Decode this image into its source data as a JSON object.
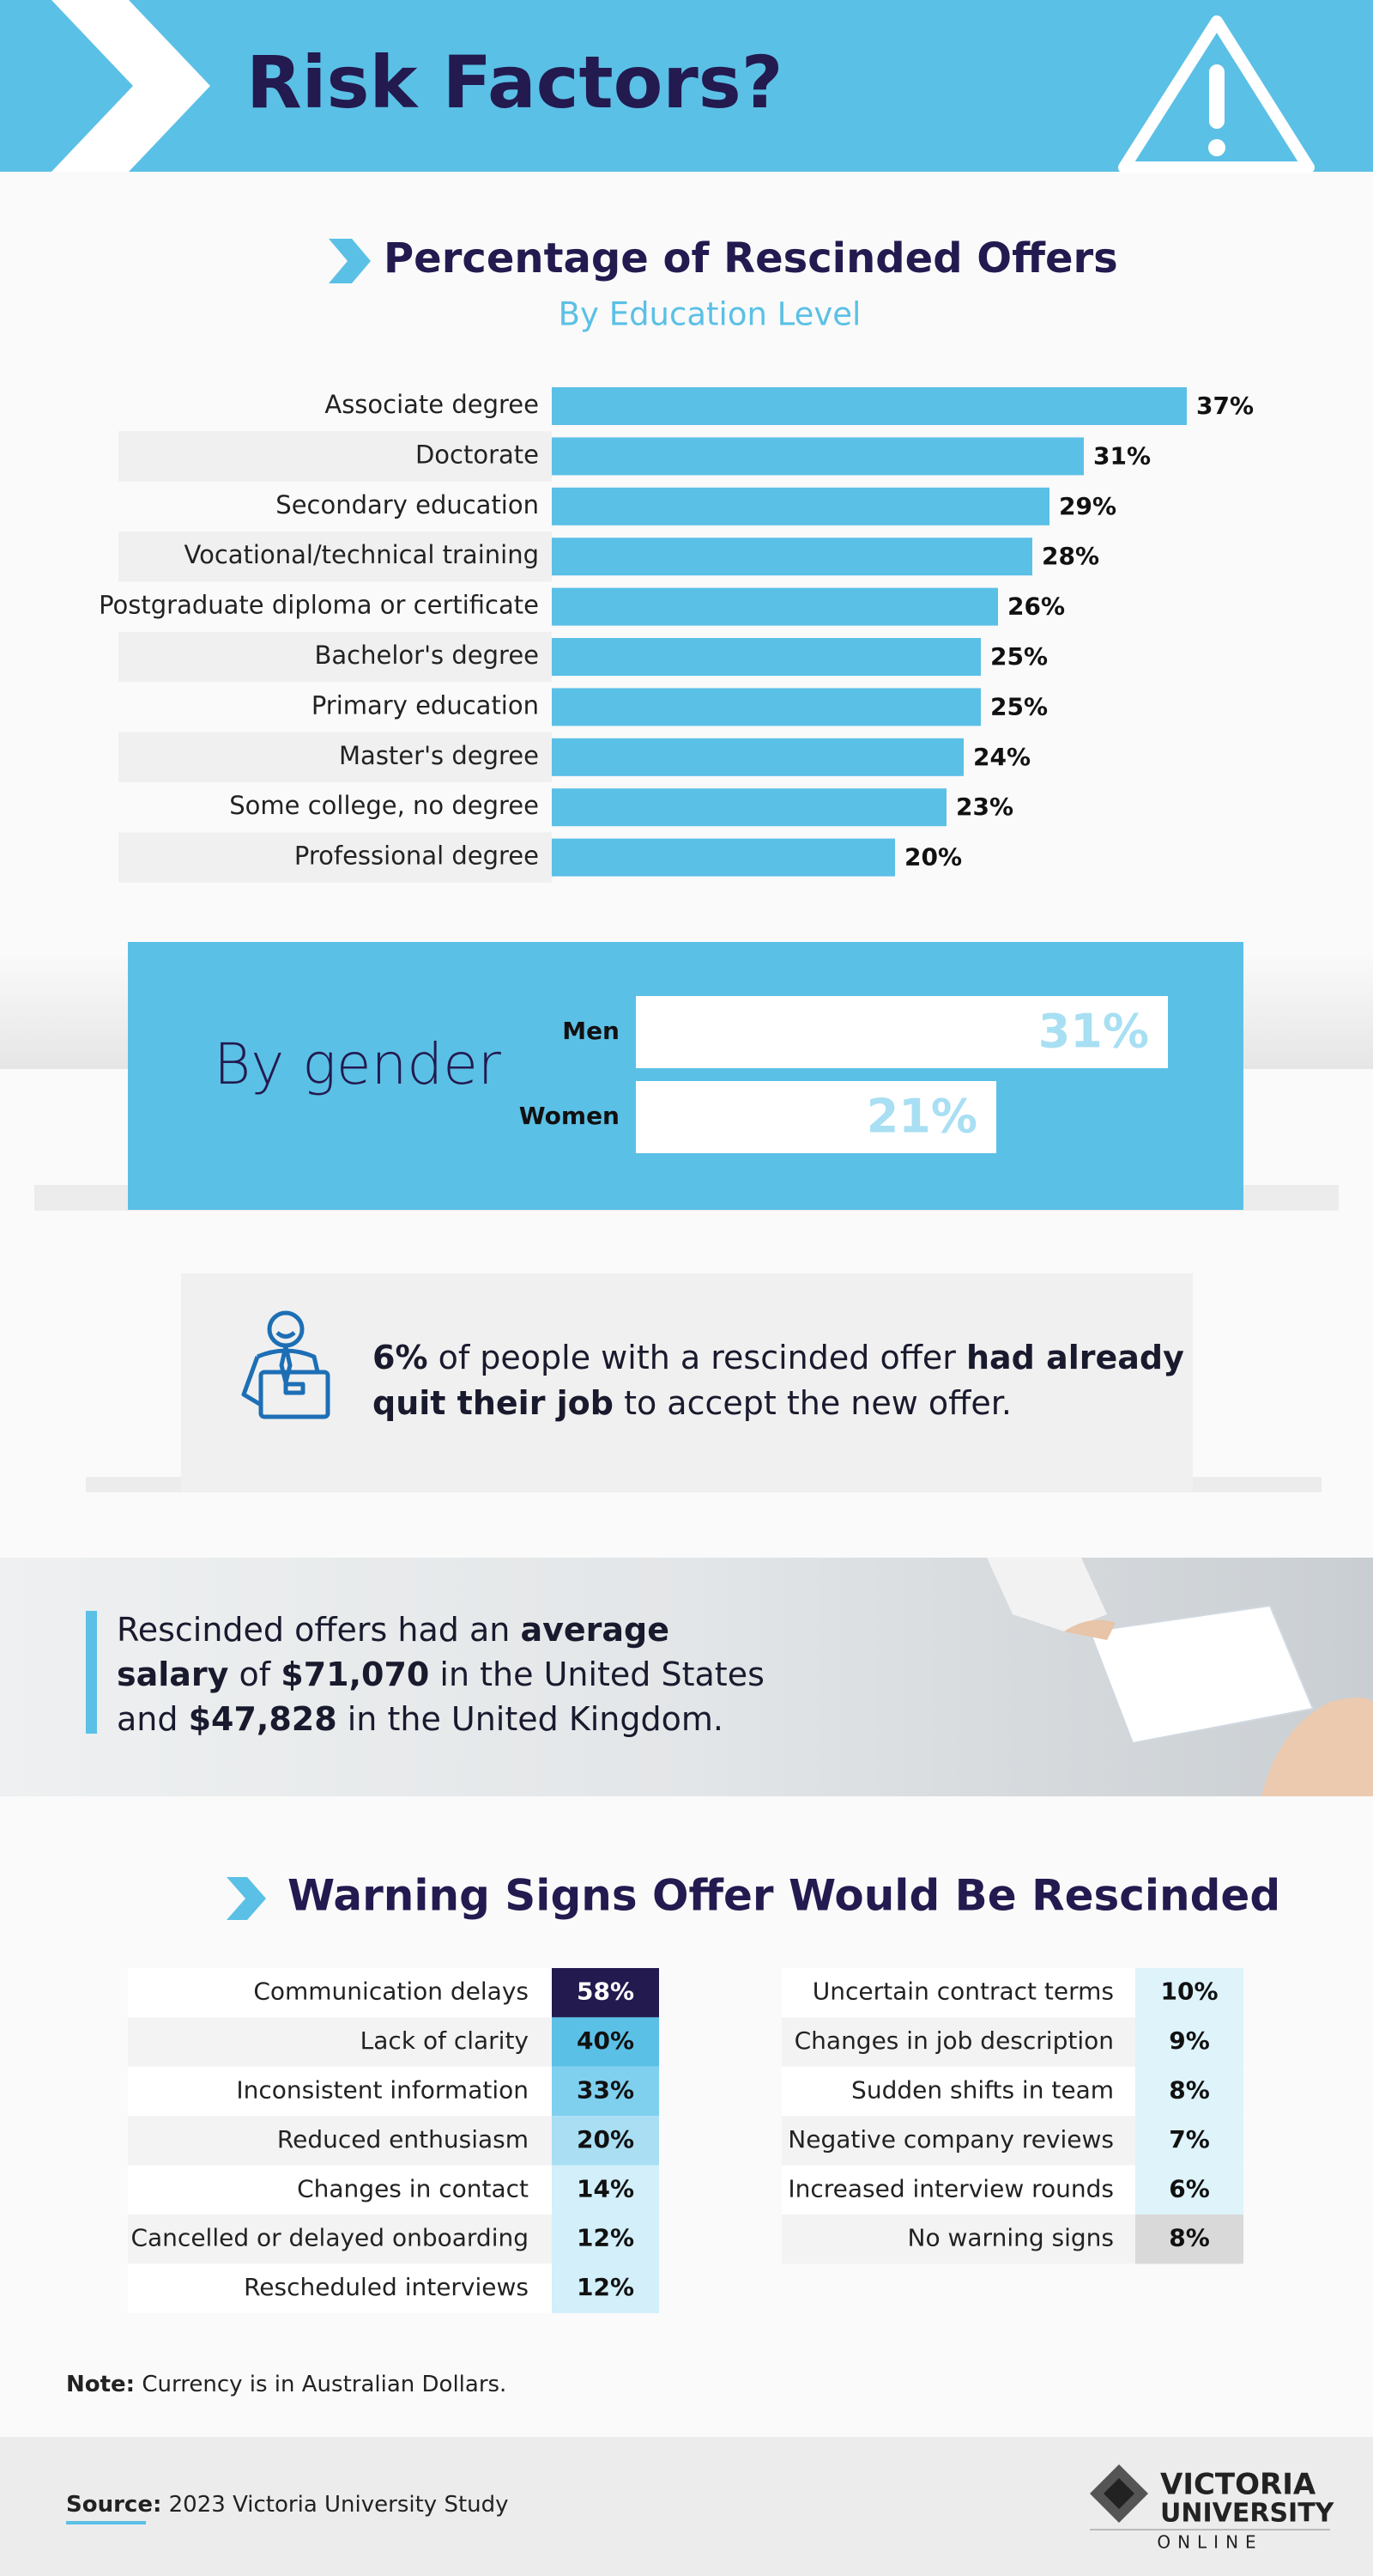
{
  "header": {
    "title": "Risk Factors?"
  },
  "chart_data": [
    {
      "type": "bar",
      "orientation": "horizontal",
      "title": "Percentage of Rescinded Offers",
      "subtitle": "By Education Level",
      "categories": [
        "Associate degree",
        "Doctorate",
        "Secondary education",
        "Vocational/technical training",
        "Postgraduate diploma or certificate",
        "Bachelor's degree",
        "Primary education",
        "Master's degree",
        "Some college, no degree",
        "Professional degree"
      ],
      "values": [
        37,
        31,
        29,
        28,
        26,
        25,
        25,
        24,
        23,
        20
      ],
      "value_labels": [
        "37%",
        "31%",
        "29%",
        "28%",
        "26%",
        "25%",
        "25%",
        "24%",
        "23%",
        "20%"
      ],
      "color": "#5bc0e6"
    },
    {
      "type": "bar",
      "orientation": "horizontal",
      "title": "By gender",
      "categories": [
        "Men",
        "Women"
      ],
      "values": [
        31,
        21
      ],
      "value_labels": [
        "31%",
        "21%"
      ],
      "color": "#ffffff",
      "label_color": "#a8dff3"
    }
  ],
  "callout": {
    "lines": [
      [
        {
          "text": "6%",
          "bold": true
        },
        {
          "text": " of people with a rescinded offer ",
          "bold": false
        },
        {
          "text": "had already",
          "bold": true
        }
      ],
      [
        {
          "text": "quit their job",
          "bold": true
        },
        {
          "text": " to accept the new offer.",
          "bold": false
        }
      ]
    ]
  },
  "salary": {
    "lines": [
      [
        {
          "text": "Rescinded offers had an ",
          "bold": false
        },
        {
          "text": "average",
          "bold": true
        }
      ],
      [
        {
          "text": "salary",
          "bold": true
        },
        {
          "text": " of ",
          "bold": false
        },
        {
          "text": "$71,070",
          "bold": true
        },
        {
          "text": " in the United States",
          "bold": false
        }
      ],
      [
        {
          "text": "and ",
          "bold": false
        },
        {
          "text": "$47,828",
          "bold": true
        },
        {
          "text": " in the United Kingdom.",
          "bold": false
        }
      ]
    ]
  },
  "warning_signs": {
    "title": "Warning Signs Offer Would Be Rescinded",
    "tables": [
      {
        "rows": [
          [
            "Communication delays",
            "58%"
          ],
          [
            "Lack of clarity",
            "40%"
          ],
          [
            "Inconsistent information",
            "33%"
          ],
          [
            "Reduced enthusiasm",
            "20%"
          ],
          [
            "Changes in contact",
            "14%"
          ],
          [
            "Cancelled or delayed onboarding",
            "12%"
          ],
          [
            "Rescheduled interviews",
            "12%"
          ]
        ],
        "shades": [
          "#231a4f",
          "#5bc0e6",
          "#7fcfee",
          "#a9def3",
          "#d2effa",
          "#d2effa",
          "#d2effa"
        ]
      },
      {
        "rows": [
          [
            "Uncertain contract terms",
            "10%"
          ],
          [
            "Changes in job description",
            "9%"
          ],
          [
            "Sudden shifts in team",
            "8%"
          ],
          [
            "Negative company reviews",
            "7%"
          ],
          [
            "Increased interview rounds",
            "6%"
          ],
          [
            "No warning signs",
            "8%"
          ]
        ],
        "shades": [
          "#dff3fb",
          "#dff3fb",
          "#dff3fb",
          "#dff3fb",
          "#dff3fb",
          "#d9d9d9"
        ]
      }
    ]
  },
  "note": {
    "label": "Note:",
    "text": " Currency is in Australian Dollars."
  },
  "footer": {
    "source_label": "Source:",
    "source": " 2023 Victoria University Study",
    "logo": [
      "VICTORIA",
      "UNIVERSITY",
      "ONLINE"
    ]
  }
}
